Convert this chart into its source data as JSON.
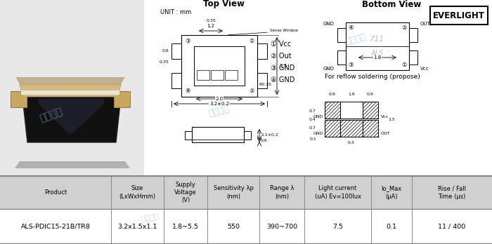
{
  "title_top": "Top View",
  "title_bottom": "Bottom View",
  "unit_text": "UNIT : mm",
  "brand": "EVERLIGHT",
  "legend": [
    "① Vcc",
    "② Out",
    "③ GND",
    "④ GND"
  ],
  "reflow_text": "For reflow soldering (propose)",
  "table_headers": [
    "Product",
    "Size\n(LxWxHmm)",
    "Supply\nVoltage\n(V)",
    "Sensitivity λp\n(nm)",
    "Range λ\n(nm)",
    "Light current\n(uA) Ev=100lux",
    "Io_Max\n(μA)",
    "Rise / Fall\nTime (μs)"
  ],
  "table_data": [
    "ALS-PDIC15-21B/TR8",
    "3.2x1.5x1.1",
    "1.8~5.5",
    "550",
    "390~700",
    "7.5",
    "0.1",
    "11 / 400"
  ],
  "header_bg": "#d0d0d0",
  "row_bg": "#ffffff",
  "table_border": "#888888",
  "bg_color": "#f0f0f0",
  "watermark_color": "#7ab0d4",
  "watermark_text": "超骏电子"
}
